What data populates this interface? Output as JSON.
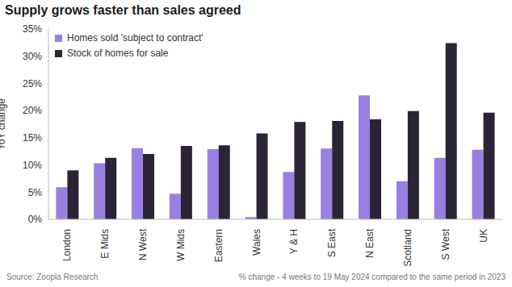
{
  "chart_data": {
    "type": "bar",
    "title": "Supply grows faster than sales agreed",
    "y_label": "YoY change",
    "categories": [
      "London",
      "E Mids",
      "N West",
      "W Mids",
      "Eastern",
      "Wales",
      "Y & H",
      "S East",
      "N East",
      "Scotland",
      "S West",
      "UK"
    ],
    "series": [
      {
        "name": "Homes sold 'subject to contract'",
        "color": "#9a7fe3",
        "values": [
          5.9,
          10.3,
          13.1,
          4.7,
          12.9,
          0.4,
          8.7,
          13.0,
          22.8,
          7.0,
          11.3,
          12.8
        ]
      },
      {
        "name": "Stock of homes for sale",
        "color": "#2b2436",
        "values": [
          9.0,
          11.3,
          12.0,
          13.5,
          13.6,
          15.8,
          17.9,
          18.1,
          18.4,
          19.9,
          32.4,
          19.6
        ]
      }
    ],
    "ylim": [
      0,
      35
    ],
    "yticks": [
      {
        "value": 0,
        "label": "0%"
      },
      {
        "value": 5,
        "label": "5%"
      },
      {
        "value": 10,
        "label": "10%"
      },
      {
        "value": 15,
        "label": "15%"
      },
      {
        "value": 20,
        "label": "20%"
      },
      {
        "value": 25,
        "label": "25%"
      },
      {
        "value": 30,
        "label": "30%"
      },
      {
        "value": 35,
        "label": "35%"
      }
    ],
    "grid": false,
    "legend": "top-left",
    "source": "Source: Zoopla Research",
    "note": "% change - 4 weeks to 19 May 2024 compared to the same period in 2023"
  }
}
